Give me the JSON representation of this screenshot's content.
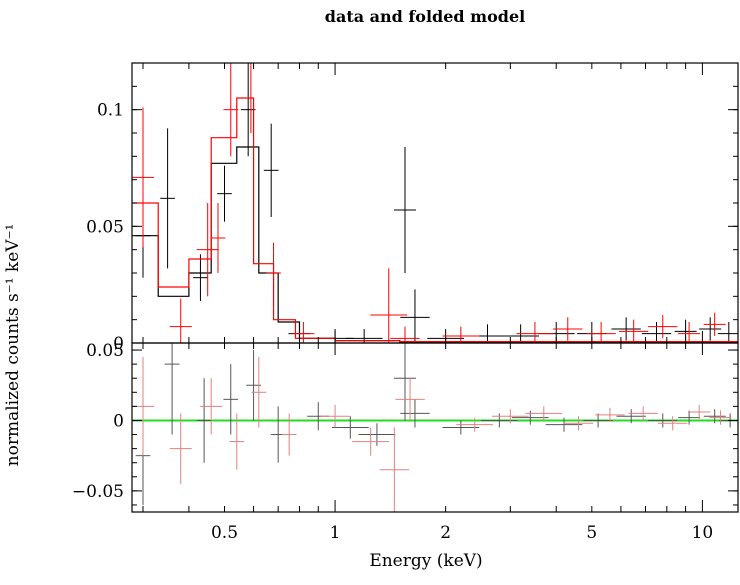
{
  "chart_data": [
    {
      "type": "scatter",
      "title": "data and folded model",
      "xlabel": "",
      "ylabel": "normalized counts s⁻¹ keV⁻¹",
      "xscale": "log",
      "xlim": [
        0.28,
        12.5
      ],
      "ylim": [
        0,
        0.12
      ],
      "x_ticks": [],
      "y_ticks": [
        {
          "value": 0,
          "label": "0"
        },
        {
          "value": 0.05,
          "label": "0.05"
        },
        {
          "value": 0.1,
          "label": "0.1"
        }
      ],
      "series": [
        {
          "color": "#000000",
          "data": [
            [
              0.3,
              0.046,
              0.02,
              0.018
            ],
            [
              0.35,
              0.062,
              0.02,
              0.03
            ],
            [
              0.43,
              0.028,
              0.02,
              0.01
            ],
            [
              0.5,
              0.064,
              0.02,
              0.012
            ],
            [
              0.58,
              0.1,
              0.02,
              0.02
            ],
            [
              0.67,
              0.074,
              0.02,
              0.02
            ],
            [
              0.8,
              0.004,
              0.03,
              0.005
            ],
            [
              1.0,
              0.002,
              0.05,
              0.004
            ],
            [
              1.2,
              0.002,
              0.05,
              0.004
            ],
            [
              1.55,
              0.057,
              0.03,
              0.027
            ],
            [
              1.65,
              0.011,
              0.04,
              0.012
            ],
            [
              2.0,
              0.002,
              0.05,
              0.004
            ],
            [
              2.6,
              0.003,
              0.05,
              0.005
            ],
            [
              3.2,
              0.003,
              0.05,
              0.005
            ],
            [
              4.0,
              0.004,
              0.05,
              0.005
            ],
            [
              5.0,
              0.004,
              0.04,
              0.005
            ],
            [
              6.2,
              0.006,
              0.04,
              0.005
            ],
            [
              7.5,
              0.004,
              0.04,
              0.005
            ],
            [
              9.0,
              0.005,
              0.03,
              0.005
            ],
            [
              10.5,
              0.006,
              0.03,
              0.005
            ],
            [
              11.8,
              0.004,
              0.03,
              0.005
            ]
          ],
          "model": [
            [
              0.28,
              0.33,
              0.046
            ],
            [
              0.33,
              0.4,
              0.02
            ],
            [
              0.4,
              0.46,
              0.03
            ],
            [
              0.46,
              0.54,
              0.077
            ],
            [
              0.54,
              0.62,
              0.084
            ],
            [
              0.62,
              0.7,
              0.03
            ],
            [
              0.7,
              0.8,
              0.009
            ],
            [
              0.8,
              1.0,
              0.002
            ],
            [
              1.0,
              1.5,
              0.001
            ],
            [
              1.5,
              12.5,
              0.0005
            ]
          ]
        },
        {
          "color": "#ff0000",
          "data": [
            [
              0.3,
              0.071,
              0.03,
              0.03
            ],
            [
              0.38,
              0.007,
              0.03,
              0.012
            ],
            [
              0.45,
              0.04,
              0.03,
              0.02
            ],
            [
              0.48,
              0.045,
              0.02,
              0.015
            ],
            [
              0.52,
              0.1,
              0.02,
              0.02
            ],
            [
              0.59,
              0.12,
              0.02,
              0.03
            ],
            [
              0.68,
              0.03,
              0.02,
              0.013
            ],
            [
              0.82,
              0.004,
              0.03,
              0.005
            ],
            [
              1.4,
              0.012,
              0.05,
              0.02
            ],
            [
              1.55,
              0.002,
              0.04,
              0.005
            ],
            [
              2.2,
              0.003,
              0.05,
              0.004
            ],
            [
              3.5,
              0.004,
              0.05,
              0.005
            ],
            [
              4.3,
              0.006,
              0.04,
              0.005
            ],
            [
              5.3,
              0.004,
              0.04,
              0.005
            ],
            [
              6.5,
              0.005,
              0.04,
              0.005
            ],
            [
              7.8,
              0.007,
              0.04,
              0.005
            ],
            [
              9.2,
              0.004,
              0.03,
              0.005
            ],
            [
              10.8,
              0.008,
              0.03,
              0.005
            ]
          ],
          "model": [
            [
              0.28,
              0.33,
              0.06
            ],
            [
              0.33,
              0.4,
              0.024
            ],
            [
              0.4,
              0.46,
              0.036
            ],
            [
              0.46,
              0.54,
              0.088
            ],
            [
              0.54,
              0.6,
              0.105
            ],
            [
              0.6,
              0.68,
              0.034
            ],
            [
              0.68,
              0.78,
              0.01
            ],
            [
              0.78,
              1.0,
              0.002
            ],
            [
              1.0,
              1.5,
              0.001
            ],
            [
              1.5,
              12.5,
              0.0006
            ]
          ]
        }
      ]
    },
    {
      "type": "scatter",
      "title": "",
      "xlabel": "Energy (keV)",
      "ylabel": "normalized counts s⁻¹ keV⁻¹",
      "xscale": "log",
      "xlim": [
        0.28,
        12.5
      ],
      "ylim": [
        -0.065,
        0.055
      ],
      "x_ticks": [
        {
          "value": 0.5,
          "label": "0.5"
        },
        {
          "value": 1,
          "label": "1"
        },
        {
          "value": 2,
          "label": "2"
        },
        {
          "value": 5,
          "label": "5"
        },
        {
          "value": 10,
          "label": "10"
        }
      ],
      "y_ticks": [
        {
          "value": -0.05,
          "label": "−0.05"
        },
        {
          "value": 0,
          "label": "0"
        },
        {
          "value": 0.05,
          "label": "0.05"
        }
      ],
      "reference_line": {
        "value": 0,
        "color": "#22dd22"
      },
      "series": [
        {
          "color": "#555555",
          "data": [
            [
              0.3,
              -0.025,
              0.02,
              0.035
            ],
            [
              0.36,
              0.04,
              0.02,
              0.05
            ],
            [
              0.44,
              0.0,
              0.02,
              0.03
            ],
            [
              0.52,
              0.015,
              0.02,
              0.025
            ],
            [
              0.6,
              0.025,
              0.02,
              0.025
            ],
            [
              0.7,
              -0.01,
              0.02,
              0.02
            ],
            [
              0.9,
              0.003,
              0.03,
              0.01
            ],
            [
              1.1,
              -0.005,
              0.05,
              0.008
            ],
            [
              1.3,
              -0.01,
              0.05,
              0.008
            ],
            [
              1.55,
              0.03,
              0.03,
              0.03
            ],
            [
              1.65,
              0.005,
              0.04,
              0.01
            ],
            [
              2.2,
              -0.005,
              0.05,
              0.005
            ],
            [
              2.8,
              0.0,
              0.05,
              0.005
            ],
            [
              3.4,
              0.002,
              0.05,
              0.005
            ],
            [
              4.2,
              -0.003,
              0.05,
              0.005
            ],
            [
              5.2,
              0.0,
              0.04,
              0.005
            ],
            [
              6.4,
              0.003,
              0.04,
              0.005
            ],
            [
              7.8,
              0.0,
              0.04,
              0.005
            ],
            [
              9.2,
              0.002,
              0.03,
              0.005
            ],
            [
              10.8,
              0.003,
              0.03,
              0.005
            ],
            [
              11.9,
              0.0,
              0.03,
              0.005
            ]
          ]
        },
        {
          "color": "#e08080",
          "data": [
            [
              0.3,
              0.01,
              0.03,
              0.035
            ],
            [
              0.38,
              -0.02,
              0.03,
              0.025
            ],
            [
              0.46,
              0.01,
              0.03,
              0.02
            ],
            [
              0.54,
              -0.015,
              0.02,
              0.02
            ],
            [
              0.62,
              0.02,
              0.02,
              0.025
            ],
            [
              0.75,
              -0.01,
              0.02,
              0.015
            ],
            [
              1.0,
              0.003,
              0.04,
              0.008
            ],
            [
              1.25,
              -0.015,
              0.05,
              0.01
            ],
            [
              1.45,
              -0.035,
              0.04,
              0.03
            ],
            [
              1.6,
              0.015,
              0.04,
              0.015
            ],
            [
              2.4,
              -0.003,
              0.05,
              0.005
            ],
            [
              3.0,
              0.003,
              0.05,
              0.005
            ],
            [
              3.7,
              0.005,
              0.05,
              0.005
            ],
            [
              4.6,
              -0.002,
              0.04,
              0.005
            ],
            [
              5.6,
              0.004,
              0.04,
              0.005
            ],
            [
              6.9,
              0.005,
              0.04,
              0.005
            ],
            [
              8.3,
              -0.002,
              0.04,
              0.005
            ],
            [
              9.8,
              0.006,
              0.03,
              0.005
            ],
            [
              11.2,
              0.002,
              0.03,
              0.005
            ]
          ]
        }
      ]
    }
  ]
}
